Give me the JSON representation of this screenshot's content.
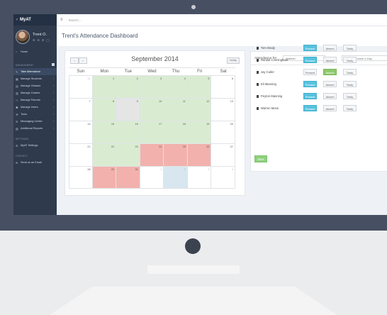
{
  "sidebar": {
    "brand": "MyAT",
    "user_name": "Trent O.",
    "user_icons": "⚙ ✉ ⚙ ◯",
    "home_label": "Home",
    "section_management": "MANAGEMENT",
    "items": [
      {
        "label": "Take Attendance",
        "icon": "edit-icon"
      },
      {
        "label": "Manage Students",
        "icon": "students-icon"
      },
      {
        "label": "Manage Classes",
        "icon": "classes-icon"
      },
      {
        "label": "Manage Grades",
        "icon": "grades-icon"
      },
      {
        "label": "Manage Parents",
        "icon": "parents-icon"
      },
      {
        "label": "Manage Users",
        "icon": "users-icon"
      },
      {
        "label": "Tools",
        "icon": "tools-icon"
      },
      {
        "label": "Messaging Center",
        "icon": "message-icon"
      },
      {
        "label": "Additional Reports",
        "icon": "reports-icon"
      }
    ],
    "section_settings": "SETTINGS",
    "settings_label": "MyAT Settings",
    "section_contact": "CONTACT",
    "contact_label": "Send us an Email"
  },
  "topbar": {
    "menu_icon": "≡",
    "search_placeholder": "Search..."
  },
  "page_title": "Trent's Attendance Dashboard",
  "calendar": {
    "month_label": "September 2014",
    "prev_label": "‹",
    "next_label": "›",
    "today_label": "today",
    "weekdays": [
      "Sun",
      "Mon",
      "Tue",
      "Wed",
      "Thu",
      "Fri",
      "Sat"
    ],
    "weeks": [
      [
        {
          "n": "31",
          "s": "other"
        },
        {
          "n": "1",
          "s": "present"
        },
        {
          "n": "2",
          "s": "present"
        },
        {
          "n": "3",
          "s": "present"
        },
        {
          "n": "4",
          "s": "present"
        },
        {
          "n": "5",
          "s": "present"
        },
        {
          "n": "6",
          "s": ""
        }
      ],
      [
        {
          "n": "7",
          "s": ""
        },
        {
          "n": "8",
          "s": "present"
        },
        {
          "n": "9",
          "s": "today"
        },
        {
          "n": "10",
          "s": "present"
        },
        {
          "n": "11",
          "s": "present"
        },
        {
          "n": "12",
          "s": "present"
        },
        {
          "n": "13",
          "s": ""
        }
      ],
      [
        {
          "n": "14",
          "s": ""
        },
        {
          "n": "15",
          "s": "present"
        },
        {
          "n": "16",
          "s": "present"
        },
        {
          "n": "17",
          "s": "present"
        },
        {
          "n": "18",
          "s": "present"
        },
        {
          "n": "19",
          "s": "present"
        },
        {
          "n": "20",
          "s": ""
        }
      ],
      [
        {
          "n": "21",
          "s": ""
        },
        {
          "n": "22",
          "s": "present"
        },
        {
          "n": "23",
          "s": "present"
        },
        {
          "n": "24",
          "s": "absent"
        },
        {
          "n": "25",
          "s": "absent"
        },
        {
          "n": "26",
          "s": "absent"
        },
        {
          "n": "27",
          "s": ""
        }
      ],
      [
        {
          "n": "28",
          "s": ""
        },
        {
          "n": "29",
          "s": "absent"
        },
        {
          "n": "30",
          "s": "absent"
        },
        {
          "n": "1",
          "s": "other"
        },
        {
          "n": "2",
          "s": "other tardy"
        },
        {
          "n": "3",
          "s": "other"
        },
        {
          "n": "4",
          "s": "other"
        }
      ]
    ]
  },
  "attendance": {
    "label": "Attendance for",
    "class_value": "Speech",
    "date_placeholder": "Please choose a Day",
    "button_labels": {
      "present": "Present",
      "absent": "Absent",
      "tardy": "Tardy"
    },
    "students": [
      {
        "name": "Tom Brady",
        "status": "present"
      },
      {
        "name": "Randal Cunningham",
        "status": "present"
      },
      {
        "name": "Jay Cutler",
        "status": "absent"
      },
      {
        "name": "Eli Manning",
        "status": "present"
      },
      {
        "name": "Peyton Manning",
        "status": "present"
      },
      {
        "name": "Warren Moon",
        "status": "present"
      }
    ],
    "save_label": "Save"
  },
  "colors": {
    "present_day": "#d9ecd2",
    "absent_day": "#f2b1ac",
    "present_button": "#57c2df",
    "absent_button": "#8dc96b",
    "save_button": "#8dd17d",
    "sidebar": "#2f3a4d"
  }
}
